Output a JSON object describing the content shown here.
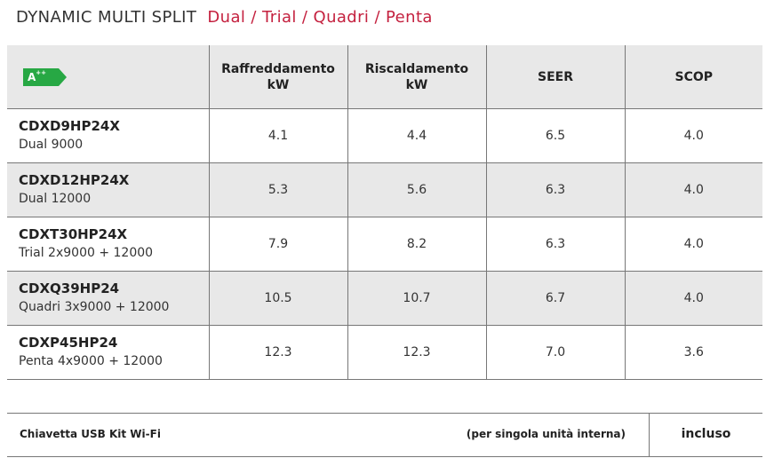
{
  "title": {
    "main": "DYNAMIC MULTI SPLIT",
    "sub": "Dual / Trial / Quadri / Penta"
  },
  "energy_class": {
    "label": "A",
    "suffix": "++",
    "color": "#27a844"
  },
  "accent_color": "#c4213f",
  "header": {
    "cooling_line1": "Raffreddamento",
    "cooling_line2": "kW",
    "heating_line1": "Riscaldamento",
    "heating_line2": "kW",
    "seer": "SEER",
    "scop": "SCOP"
  },
  "rows": [
    {
      "code": "CDXD9HP24X",
      "desc": "Dual 9000",
      "cooling": "4.1",
      "heating": "4.4",
      "seer": "6.5",
      "scop": "4.0"
    },
    {
      "code": "CDXD12HP24X",
      "desc": "Dual 12000",
      "cooling": "5.3",
      "heating": "5.6",
      "seer": "6.3",
      "scop": "4.0"
    },
    {
      "code": "CDXT30HP24X",
      "desc": "Trial 2x9000 + 12000",
      "cooling": "7.9",
      "heating": "8.2",
      "seer": "6.3",
      "scop": "4.0"
    },
    {
      "code": "CDXQ39HP24",
      "desc": "Quadri 3x9000 + 12000",
      "cooling": "10.5",
      "heating": "10.7",
      "seer": "6.7",
      "scop": "4.0"
    },
    {
      "code": "CDXP45HP24",
      "desc": "Penta 4x9000 + 12000",
      "cooling": "12.3",
      "heating": "12.3",
      "seer": "7.0",
      "scop": "3.6"
    }
  ],
  "footer": {
    "accessory": "Chiavetta USB  Kit Wi-Fi",
    "note": "(per singola unità interna)",
    "value": "incluso"
  }
}
